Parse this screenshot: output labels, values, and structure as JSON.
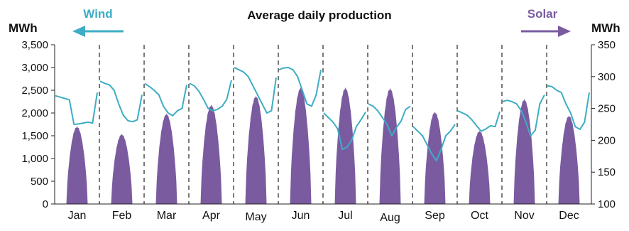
{
  "chart_data": {
    "type": "area",
    "title": "Average daily production",
    "ylabel_left": "MWh",
    "ylabel_right": "MWh",
    "y_left_range": [
      0,
      3500
    ],
    "y_left_ticks": [
      "0",
      "500",
      "1,000",
      "1,500",
      "2,000",
      "2,500",
      "3,000",
      "3,500"
    ],
    "y_right_range": [
      100,
      350
    ],
    "y_right_ticks": [
      "100",
      "150",
      "200",
      "250",
      "300",
      "350"
    ],
    "months": [
      "Jan",
      "Feb",
      "Mar",
      "Apr",
      "May",
      "Jun",
      "Jul",
      "Aug",
      "Sep",
      "Oct",
      "Nov",
      "Dec"
    ],
    "legend": {
      "wind": {
        "label": "Wind",
        "color": "#3DADC4",
        "axis": "left",
        "arrow": "left"
      },
      "solar": {
        "label": "Solar",
        "color": "#7A5BA0",
        "axis": "right",
        "arrow": "right"
      }
    },
    "solar_peak_by_month": [
      222,
      210,
      242,
      256,
      270,
      283,
      283,
      282,
      245,
      215,
      265,
      239
    ],
    "wind_by_month": [
      [
        2380,
        2350,
        2320,
        2290,
        1750,
        1760,
        1780,
        1800,
        1780,
        2450
      ],
      [
        2700,
        2650,
        2620,
        2500,
        2200,
        1950,
        1830,
        1810,
        1850,
        2400
      ],
      [
        2650,
        2580,
        2500,
        2400,
        2150,
        2000,
        1940,
        2050,
        2100,
        2620
      ],
      [
        2650,
        2600,
        2480,
        2300,
        2100,
        2050,
        2080,
        2150,
        2300,
        2720
      ],
      [
        3000,
        2950,
        2900,
        2800,
        2600,
        2400,
        2200,
        2000,
        2050,
        2780
      ],
      [
        2950,
        2990,
        3000,
        2950,
        2800,
        2500,
        2200,
        2150,
        2400,
        2950
      ],
      [
        2000,
        1900,
        1800,
        1650,
        1200,
        1250,
        1400,
        1700,
        1850,
        2020
      ],
      [
        2200,
        2150,
        2050,
        1900,
        1750,
        1500,
        1680,
        1820,
        2080,
        2150
      ],
      [
        1700,
        1600,
        1500,
        1300,
        1100,
        950,
        1200,
        1500,
        1600,
        1750
      ],
      [
        2050,
        2000,
        1950,
        1850,
        1720,
        1600,
        1650,
        1720,
        1700,
        2030
      ],
      [
        2250,
        2280,
        2250,
        2200,
        2050,
        1800,
        1500,
        1620,
        2200,
        2400
      ],
      [
        2600,
        2580,
        2500,
        2450,
        2200,
        2000,
        1700,
        1640,
        1800,
        2450
      ]
    ]
  }
}
